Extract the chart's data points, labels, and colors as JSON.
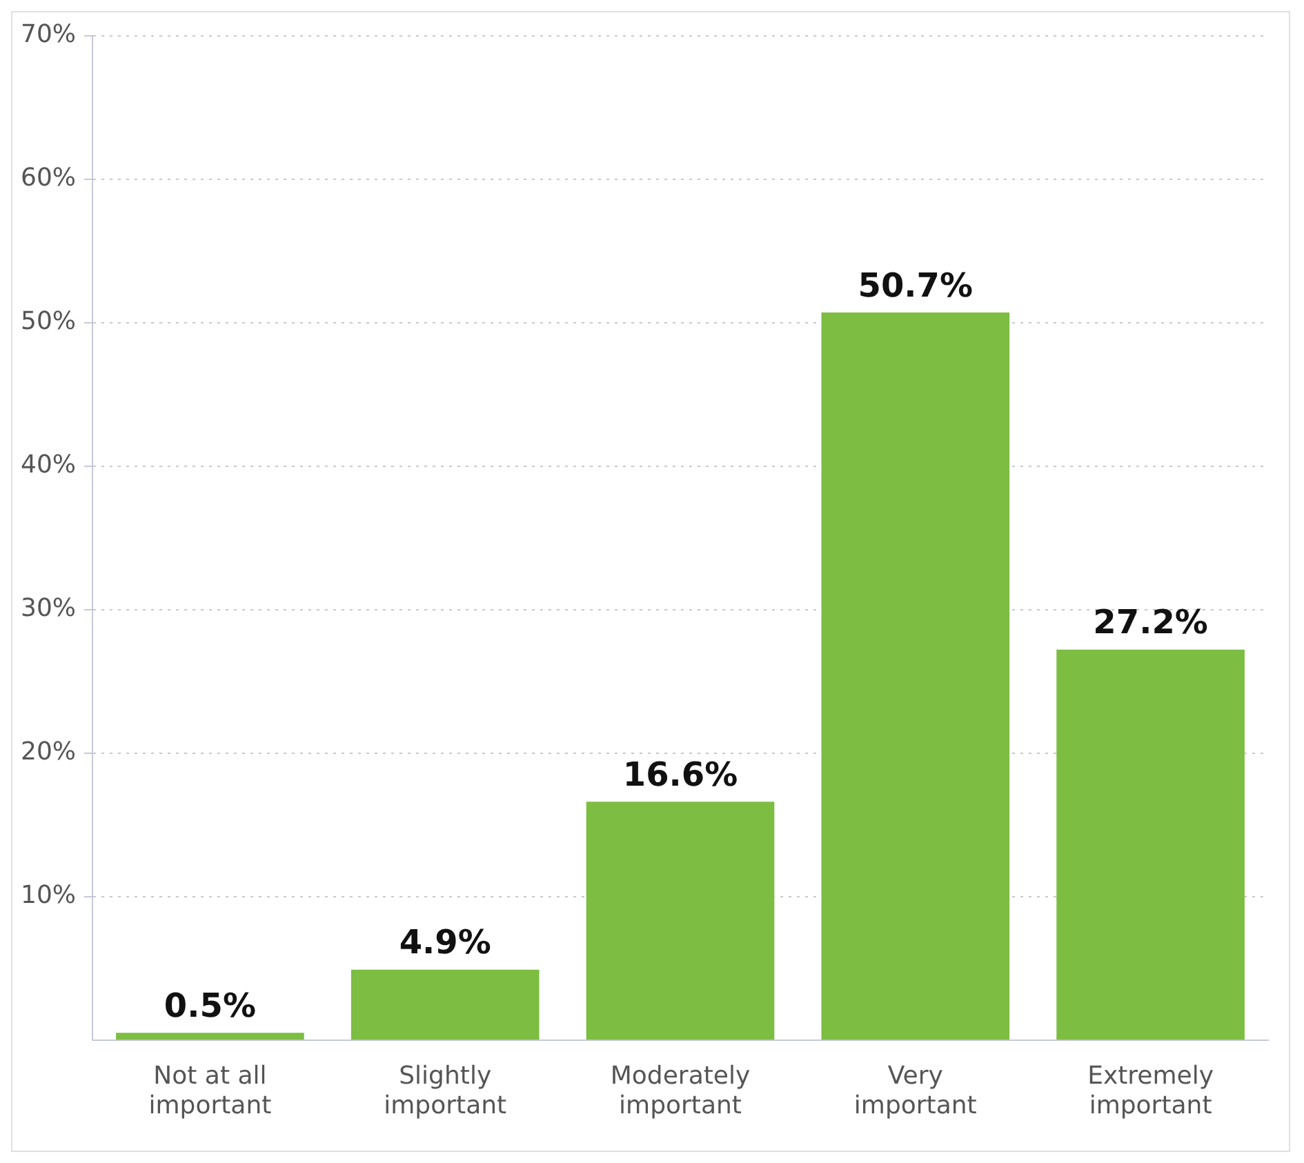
{
  "chart_data": {
    "type": "bar",
    "categories": [
      "Not at all important",
      "Slightly important",
      "Moderately important",
      "Very important",
      "Extremely important"
    ],
    "values": [
      0.5,
      4.9,
      16.6,
      50.7,
      27.2
    ],
    "value_labels": [
      "0.5%",
      "4.9%",
      "16.6%",
      "50.7%",
      "27.2%"
    ],
    "color": "#7dbd42",
    "ylim": [
      0,
      70
    ],
    "yticks": [
      {
        "value": 10,
        "label": "10%"
      },
      {
        "value": 20,
        "label": "20%"
      },
      {
        "value": 30,
        "label": "30%"
      },
      {
        "value": 40,
        "label": "40%"
      },
      {
        "value": 50,
        "label": "50%"
      },
      {
        "value": 60,
        "label": "60%"
      },
      {
        "value": 70,
        "label": "70%"
      }
    ],
    "grid": "y",
    "legend": false
  }
}
